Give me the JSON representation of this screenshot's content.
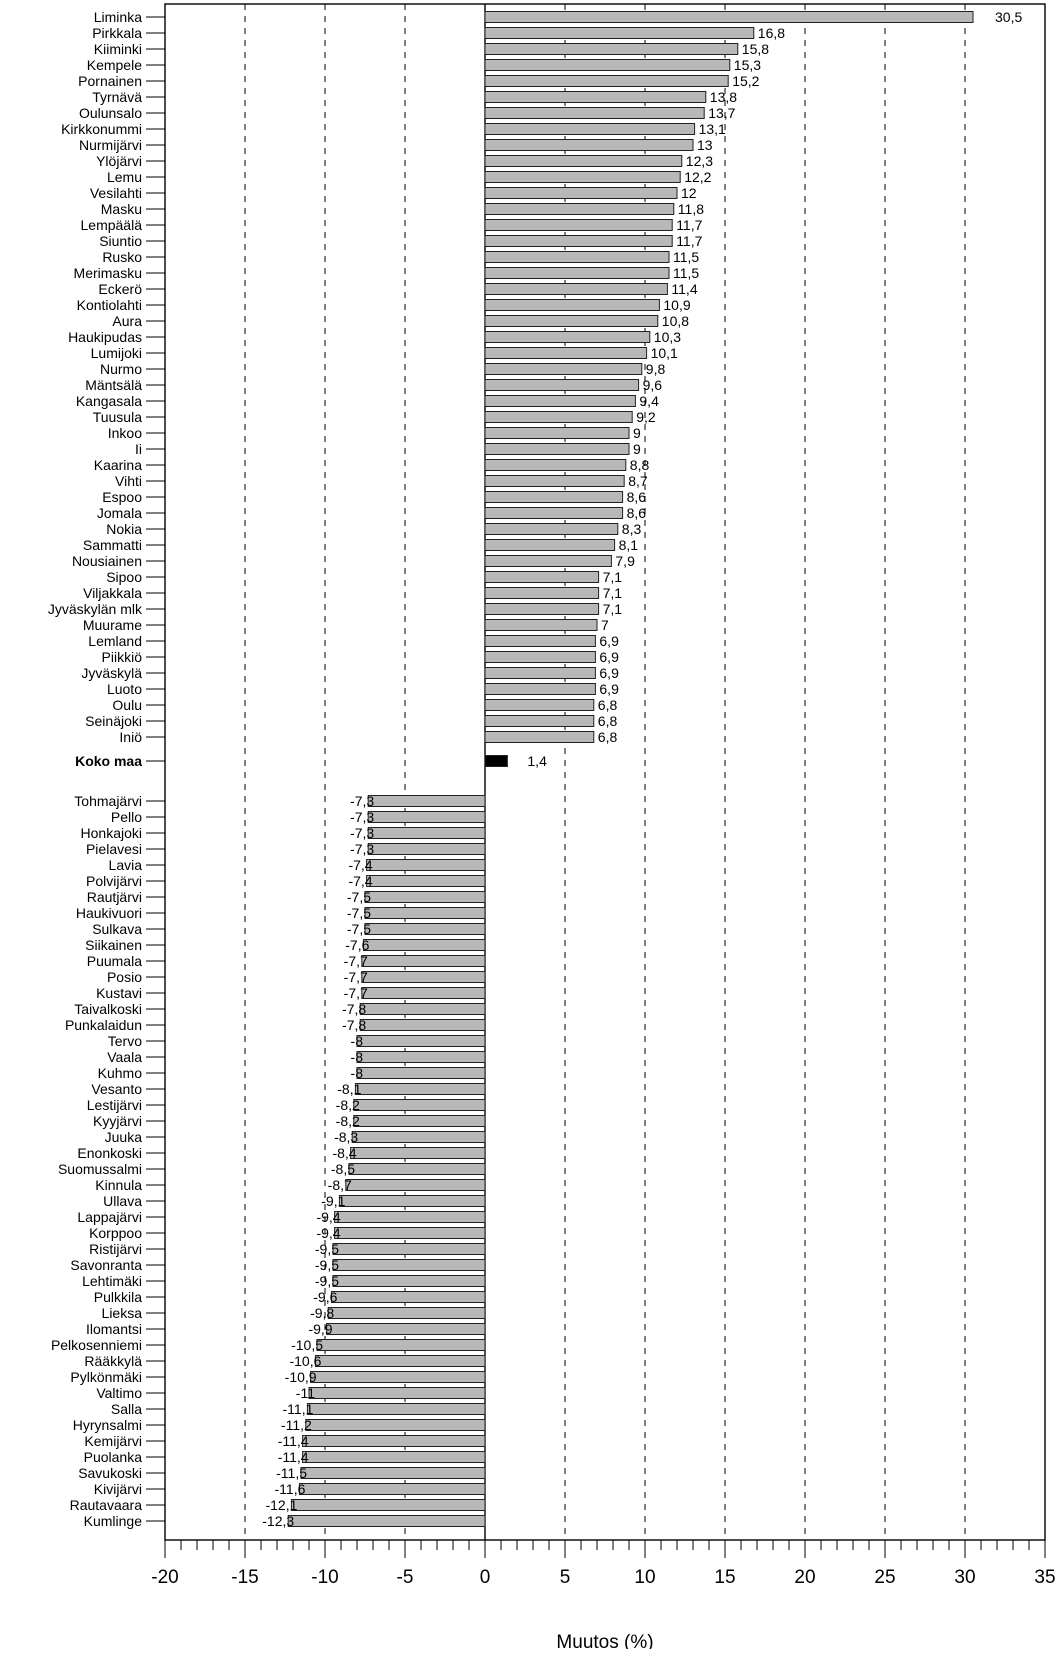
{
  "chart_data": {
    "type": "bar",
    "orientation": "horizontal",
    "xlabel": "Muutos (%)",
    "xlim": [
      -20,
      35
    ],
    "x_ticks": [
      "-20",
      "-15",
      "-10",
      "-5",
      "0",
      "5",
      "10",
      "15",
      "20",
      "25",
      "30",
      "35"
    ],
    "x_tick_values": [
      -20,
      -15,
      -10,
      -5,
      0,
      5,
      10,
      15,
      20,
      25,
      30,
      35
    ],
    "gridlines": [
      -15,
      -10,
      -5,
      5,
      10,
      15,
      20,
      25,
      30
    ],
    "colors": {
      "bar_fill": "#b8b8b8",
      "bar_edge": "#222222",
      "highlight_fill": "#000000"
    },
    "highlight_category": "Koko maa",
    "categories": [
      "Liminka",
      "Pirkkala",
      "Kiiminki",
      "Kempele",
      "Pornainen",
      "Tyrnävä",
      "Oulunsalo",
      "Kirkkonummi",
      "Nurmijärvi",
      "Ylöjärvi",
      "Lemu",
      "Vesilahti",
      "Masku",
      "Lempäälä",
      "Siuntio",
      "Rusko",
      "Merimasku",
      "Eckerö",
      "Kontiolahti",
      "Aura",
      "Haukipudas",
      "Lumijoki",
      "Nurmo",
      "Mäntsälä",
      "Kangasala",
      "Tuusula",
      "Inkoo",
      "Ii",
      "Kaarina",
      "Vihti",
      "Espoo",
      "Jomala",
      "Nokia",
      "Sammatti",
      "Nousiainen",
      "Sipoo",
      "Viljakkala",
      "Jyväskylän mlk",
      "Muurame",
      "Lemland",
      "Piikkiö",
      "Jyväskylä",
      "Luoto",
      "Oulu",
      "Seinäjoki",
      "Iniö",
      "Koko maa",
      "Tohmajärvi",
      "Pello",
      "Honkajoki",
      "Pielavesi",
      "Lavia",
      "Polvijärvi",
      "Rautjärvi",
      "Haukivuori",
      "Sulkava",
      "Siikainen",
      "Puumala",
      "Posio",
      "Kustavi",
      "Taivalkoski",
      "Punkalaidun",
      "Tervo",
      "Vaala",
      "Kuhmo",
      "Vesanto",
      "Lestijärvi",
      "Kyyjärvi",
      "Juuka",
      "Enonkoski",
      "Suomussalmi",
      "Kinnula",
      "Ullava",
      "Lappajärvi",
      "Korppoo",
      "Ristijärvi",
      "Savonranta",
      "Lehtimäki",
      "Pulkkila",
      "Lieksa",
      "Ilomantsi",
      "Pelkosenniemi",
      "Rääkkylä",
      "Pylkönmäki",
      "Valtimo",
      "Salla",
      "Hyrynsalmi",
      "Kemijärvi",
      "Puolanka",
      "Savukoski",
      "Kivijärvi",
      "Rautavaara",
      "Kumlinge"
    ],
    "values": [
      30.5,
      16.8,
      15.8,
      15.3,
      15.2,
      13.8,
      13.7,
      13.1,
      13,
      12.3,
      12.2,
      12,
      11.8,
      11.7,
      11.7,
      11.5,
      11.5,
      11.4,
      10.9,
      10.8,
      10.3,
      10.1,
      9.8,
      9.6,
      9.4,
      9.2,
      9,
      9,
      8.8,
      8.7,
      8.6,
      8.6,
      8.3,
      8.1,
      7.9,
      7.1,
      7.1,
      7.1,
      7,
      6.9,
      6.9,
      6.9,
      6.9,
      6.8,
      6.8,
      6.8,
      1.4,
      -7.3,
      -7.3,
      -7.3,
      -7.3,
      -7.4,
      -7.4,
      -7.5,
      -7.5,
      -7.5,
      -7.6,
      -7.7,
      -7.7,
      -7.7,
      -7.8,
      -7.8,
      -8,
      -8,
      -8,
      -8.1,
      -8.2,
      -8.2,
      -8.3,
      -8.4,
      -8.5,
      -8.7,
      -9.1,
      -9.4,
      -9.4,
      -9.5,
      -9.5,
      -9.5,
      -9.6,
      -9.8,
      -9.9,
      -10.5,
      -10.6,
      -10.9,
      -11,
      -11.1,
      -11.2,
      -11.4,
      -11.4,
      -11.5,
      -11.6,
      -12.1,
      -12.3
    ],
    "value_labels": [
      "30,5",
      "16,8",
      "15,8",
      "15,3",
      "15,2",
      "13,8",
      "13,7",
      "13,1",
      "13",
      "12,3",
      "12,2",
      "12",
      "11,8",
      "11,7",
      "11,7",
      "11,5",
      "11,5",
      "11,4",
      "10,9",
      "10,8",
      "10,3",
      "10,1",
      "9,8",
      "9,6",
      "9,4",
      "9,2",
      "9",
      "9",
      "8,8",
      "8,7",
      "8,6",
      "8,6",
      "8,3",
      "8,1",
      "7,9",
      "7,1",
      "7,1",
      "7,1",
      "7",
      "6,9",
      "6,9",
      "6,9",
      "6,9",
      "6,8",
      "6,8",
      "6,8",
      "1,4",
      "-7,3",
      "-7,3",
      "-7,3",
      "-7,3",
      "-7,4",
      "-7,4",
      "-7,5",
      "-7,5",
      "-7,5",
      "-7,6",
      "-7,7",
      "-7,7",
      "-7,7",
      "-7,8",
      "-7,8",
      "-8",
      "-8",
      "-8",
      "-8,1",
      "-8,2",
      "-8,2",
      "-8,3",
      "-8,4",
      "-8,5",
      "-8,7",
      "-9,1",
      "-9,4",
      "-9,4",
      "-9,5",
      "-9,5",
      "-9,5",
      "-9,6",
      "-9,8",
      "-9,9",
      "-10,5",
      "-10,6",
      "-10,9",
      "-11",
      "-11,1",
      "-11,2",
      "-11,4",
      "-11,4",
      "-11,5",
      "-11,6",
      "-12,1",
      "-12,3"
    ]
  }
}
